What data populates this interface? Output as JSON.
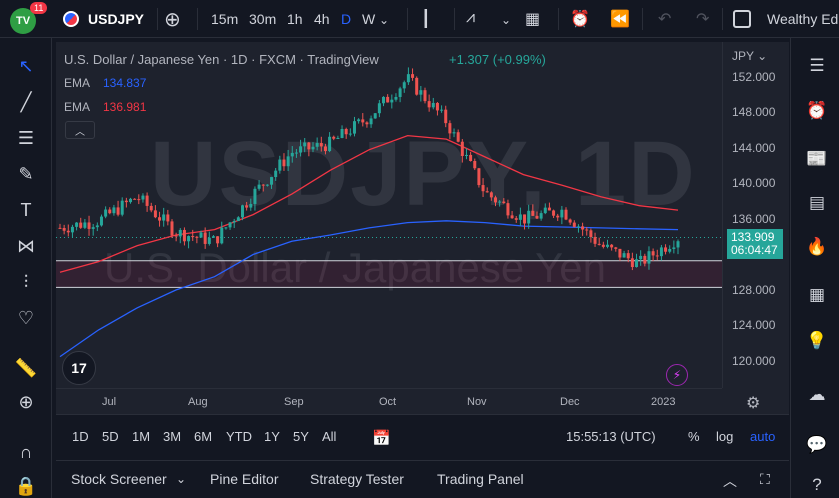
{
  "header": {
    "notif_count": "11",
    "logo_text": "TV",
    "symbol": "USDJPY",
    "intervals": [
      "15m",
      "30m",
      "1h",
      "4h",
      "D",
      "W"
    ],
    "active_interval": "D",
    "account": "Wealthy Ed"
  },
  "legend": {
    "title": "U.S. Dollar / Japanese Yen · 1D · FXCM · TradingView",
    "change": "+1.307 (+0.99%)",
    "ema1_label": "EMA",
    "ema1_value": "134.837",
    "ema2_label": "EMA",
    "ema2_value": "136.981"
  },
  "watermark": {
    "line1": "USDJPY, 1D",
    "line2": "U.S. Dollar / Japanese Yen"
  },
  "price_axis": {
    "currency": "JPY",
    "ticks": [
      "152.000",
      "148.000",
      "144.000",
      "140.000",
      "136.000",
      "128.000",
      "124.000",
      "120.000"
    ],
    "current_price": "133.909",
    "countdown": "06:04:47"
  },
  "time_axis": {
    "ticks": [
      "Jul",
      "Aug",
      "Sep",
      "Oct",
      "Nov",
      "Dec",
      "2023"
    ]
  },
  "bottom_toolbar": {
    "ranges": [
      "1D",
      "5D",
      "1M",
      "3M",
      "6M",
      "YTD",
      "1Y",
      "5Y",
      "All"
    ],
    "clock": "15:55:13 (UTC)",
    "pct": "%",
    "log": "log",
    "auto": "auto"
  },
  "panels": {
    "items": [
      "Stock Screener",
      "Pine Editor",
      "Strategy Tester",
      "Trading Panel"
    ]
  },
  "icons": {
    "left": [
      "cursor-icon",
      "trendline-icon",
      "fib-icon",
      "brush-icon",
      "text-icon",
      "pattern-icon",
      "forecast-icon",
      "heart-icon",
      "ruler-icon",
      "zoom-icon",
      "magnet-icon",
      "lock-icon"
    ],
    "right": [
      "watchlist-icon",
      "alarm-icon",
      "news-icon",
      "calendar-icon",
      "hotlist-icon",
      "data-icon",
      "ideas-icon",
      "chat-icon"
    ]
  },
  "colors": {
    "up": "#26a69a",
    "down": "#ef5350",
    "ema_fast": "#2962ff",
    "ema_slow": "#f23645",
    "background": "#1e222d"
  },
  "chart_data": {
    "type": "line",
    "symbol": "USDJPY",
    "timeframe": "1D",
    "ylim": [
      117,
      154
    ],
    "x": [
      "Jun-mid",
      "Jul",
      "Jul-mid",
      "Aug",
      "Aug-mid",
      "Sep",
      "Sep-mid",
      "Oct",
      "Oct-mid",
      "Oct-end",
      "Nov",
      "Nov-mid",
      "Dec",
      "Dec-mid",
      "Dec-end",
      "2023",
      "Jan-mid"
    ],
    "series": [
      {
        "values": [
          135.0,
          135.8,
          138.5,
          134.5,
          133.5,
          138.8,
          143.5,
          144.5,
          147.5,
          151.8,
          147.0,
          139.0,
          136.0,
          137.0,
          133.0,
          131.0,
          133.9
        ]
      },
      {
        "values": [
          120.5,
          123.5,
          126.0,
          128.0,
          129.5,
          132.0,
          133.5,
          134.2,
          135.0,
          135.6,
          135.8,
          135.6,
          135.2,
          135.1,
          135.0,
          134.9,
          134.8
        ]
      },
      {
        "values": [
          130.0,
          131.2,
          133.0,
          134.2,
          134.8,
          136.5,
          138.8,
          141.5,
          143.8,
          145.4,
          145.0,
          143.0,
          141.0,
          139.8,
          138.5,
          137.5,
          137.0
        ]
      }
    ],
    "support_zone": [
      128.3,
      131.3
    ],
    "last_price": 133.909
  }
}
